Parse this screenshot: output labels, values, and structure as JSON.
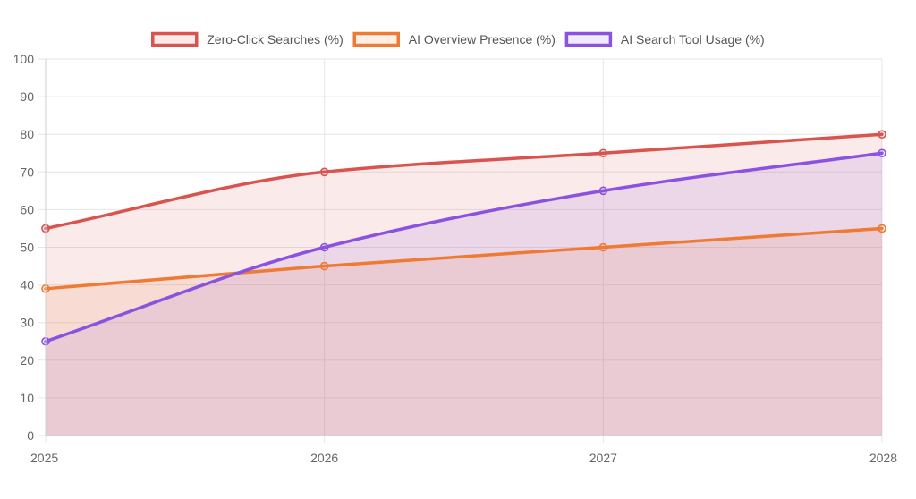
{
  "chart_data": {
    "type": "line",
    "title": "",
    "xlabel": "",
    "ylabel": "",
    "x": [
      "2025",
      "2026",
      "2027",
      "2028"
    ],
    "ylim": [
      0,
      100
    ],
    "yticks": [
      0,
      10,
      20,
      30,
      40,
      50,
      60,
      70,
      80,
      90,
      100
    ],
    "grid": true,
    "legend_position": "top",
    "filled_area": true,
    "smoothed": true,
    "series": [
      {
        "name": "Zero-Click Searches (%)",
        "values": [
          55,
          70,
          75,
          80
        ],
        "color": "#d9534f",
        "fill": "rgba(217, 83, 79, 0.12)"
      },
      {
        "name": "AI Overview Presence (%)",
        "values": [
          39,
          45,
          50,
          55
        ],
        "color": "#ee7a34",
        "fill": "rgba(238, 122, 52, 0.12)"
      },
      {
        "name": "AI Search Tool Usage (%)",
        "values": [
          25,
          50,
          65,
          75
        ],
        "color": "#8a52df",
        "fill": "rgba(138, 82, 223, 0.12)"
      }
    ]
  }
}
